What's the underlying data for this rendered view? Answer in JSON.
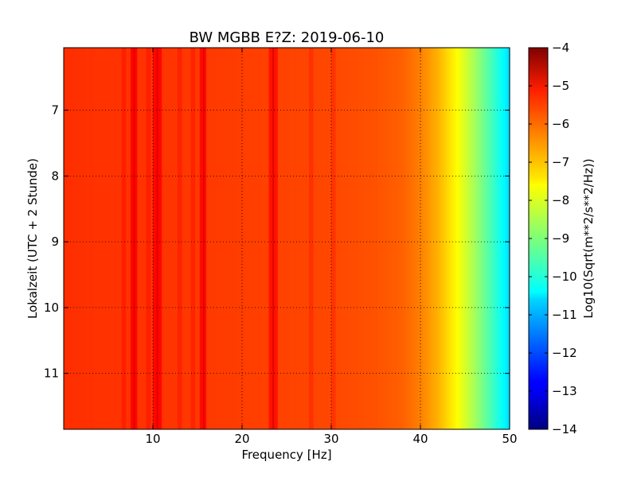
{
  "chart_data": {
    "type": "heatmap",
    "title": "BW MGBB E?Z: 2019-06-10",
    "xlabel": "Frequency [Hz]",
    "ylabel": "Lokalzeit (UTC + 2 Stunde)",
    "xlim": [
      0,
      50
    ],
    "ylim": [
      11.85,
      6.05
    ],
    "x_ticks": [
      10,
      20,
      30,
      40,
      50
    ],
    "y_ticks": [
      7,
      8,
      9,
      10,
      11
    ],
    "grid": true,
    "colormap": "jet",
    "colorbar": {
      "label": "Log10(Sqrt(m**2/s**2/Hz))",
      "range": [
        -14,
        -4
      ],
      "ticks": [
        -4,
        -5,
        -6,
        -7,
        -8,
        -9,
        -10,
        -11,
        -12,
        -13,
        -14
      ]
    },
    "spectral_profile": {
      "frequency_hz": [
        0,
        5,
        10,
        15,
        20,
        25,
        30,
        35,
        38,
        40,
        42,
        44,
        46,
        48,
        50
      ],
      "level": [
        -5.7,
        -5.75,
        -5.75,
        -5.8,
        -5.85,
        -5.9,
        -5.95,
        -6.05,
        -6.2,
        -6.5,
        -7.0,
        -7.7,
        -8.6,
        -9.6,
        -10.6
      ]
    },
    "strong_lines_hz": [
      7.9,
      10.5,
      15.7,
      23.5
    ],
    "weak_lines_hz": [
      6.7,
      9.5,
      13.0,
      14.5,
      27.8,
      30.3
    ]
  }
}
